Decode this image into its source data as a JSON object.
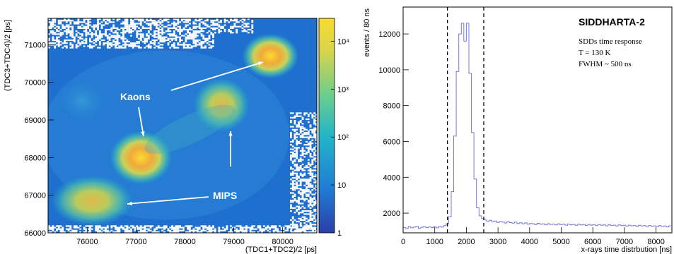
{
  "chart_data": [
    {
      "type": "heatmap",
      "xlabel": "(TDC1+TDC2)/2 [ps]",
      "ylabel": "(TDC3+TDC4)/2 [ps]",
      "xlim": [
        75200,
        80700
      ],
      "ylim": [
        66000,
        71700
      ],
      "x_ticks": [
        "76000",
        "77000",
        "78000",
        "79000",
        "80000"
      ],
      "y_ticks": [
        "66000",
        "67000",
        "68000",
        "69000",
        "70000",
        "71000"
      ],
      "colorbar": {
        "scale": "log",
        "range": [
          1,
          30000
        ],
        "tick_values": [
          1,
          10,
          100,
          1000,
          10000
        ],
        "tick_labels": [
          "1",
          "10",
          "10²",
          "10³",
          "10⁴"
        ],
        "colors": [
          "#2b3fa8",
          "#1f7ad6",
          "#22b5c8",
          "#6fcf8a",
          "#d9d44a",
          "#f7dc2f"
        ]
      },
      "clusters": [
        {
          "x": 79750,
          "y": 70700,
          "peak": 20000
        },
        {
          "x": 77100,
          "y": 68000,
          "peak": 12000
        },
        {
          "x": 78750,
          "y": 69400,
          "peak": 3000
        },
        {
          "x": 76100,
          "y": 66850,
          "peak": 1500
        },
        {
          "x": 75900,
          "y": 69500,
          "peak": 150
        }
      ],
      "annotations": [
        {
          "text": "Kaons",
          "x": 76700,
          "y": 69200
        },
        {
          "text": "MIPS",
          "x": 78800,
          "y": 67000
        }
      ]
    },
    {
      "type": "line",
      "title": "SIDDHARTA-2",
      "xlabel": "x-rays time distrbution [ns]",
      "ylabel": "events / 80 ns",
      "xlim": [
        0,
        8500
      ],
      "ylim": [
        900,
        13500
      ],
      "x_ticks": [
        "0",
        "1000",
        "2000",
        "3000",
        "4000",
        "5000",
        "6000",
        "7000",
        "8000"
      ],
      "y_ticks": [
        "2000",
        "4000",
        "6000",
        "8000",
        "10000",
        "12000"
      ],
      "text_lines": [
        "SDDs time response",
        "T = 130 K",
        "FWHM ~ 500 ns"
      ],
      "dashed_lines_x": [
        1400,
        2550
      ],
      "series": [
        {
          "x": [
            0,
            80,
            160,
            240,
            320,
            400,
            480,
            560,
            640,
            720,
            800,
            880,
            960,
            1040,
            1120,
            1200,
            1280,
            1360,
            1440,
            1520,
            1600,
            1680,
            1760,
            1840,
            1920,
            2000,
            2080,
            2160,
            2240,
            2320,
            2400,
            2480,
            2560,
            2640,
            2720,
            2800,
            2880,
            2960,
            3040,
            3120,
            3200,
            3280,
            3360,
            3440,
            3520,
            3600,
            3680,
            3760,
            3840,
            3920,
            4000,
            4080,
            4160,
            4240,
            4320,
            4400,
            4480,
            4560,
            4640,
            4720,
            4800,
            4880,
            4960,
            5040,
            5120,
            5200,
            5280,
            5360,
            5440,
            5520,
            5600,
            5680,
            5760,
            5840,
            5920,
            6000,
            6080,
            6160,
            6240,
            6320,
            6400,
            6480,
            6560,
            6640,
            6720,
            6800,
            6880,
            6960,
            7040,
            7120,
            7200,
            7280,
            7360,
            7440,
            7520,
            7600,
            7680,
            7760,
            7840,
            7920,
            8000,
            8080,
            8160,
            8240,
            8320,
            8400
          ],
          "y": [
            1200,
            1150,
            1250,
            1180,
            1220,
            1260,
            1150,
            1210,
            1240,
            1190,
            1230,
            1200,
            1250,
            1180,
            1260,
            1220,
            1300,
            1400,
            1800,
            3200,
            6300,
            9900,
            12000,
            12600,
            11600,
            12600,
            9800,
            6500,
            3900,
            2300,
            1850,
            1700,
            1620,
            1550,
            1600,
            1520,
            1560,
            1480,
            1530,
            1500,
            1450,
            1520,
            1470,
            1440,
            1500,
            1420,
            1460,
            1400,
            1450,
            1380,
            1420,
            1400,
            1360,
            1430,
            1380,
            1400,
            1350,
            1410,
            1370,
            1390,
            1340,
            1400,
            1360,
            1380,
            1330,
            1390,
            1350,
            1370,
            1320,
            1380,
            1340,
            1360,
            1310,
            1370,
            1330,
            1350,
            1300,
            1360,
            1320,
            1340,
            1290,
            1350,
            1310,
            1330,
            1280,
            1340,
            1300,
            1320,
            1270,
            1330,
            1290,
            1310,
            1260,
            1320,
            1280,
            1300,
            1250,
            1310,
            1270,
            1290,
            1240,
            1300,
            1260,
            1280,
            1230,
            1290
          ]
        }
      ]
    }
  ]
}
